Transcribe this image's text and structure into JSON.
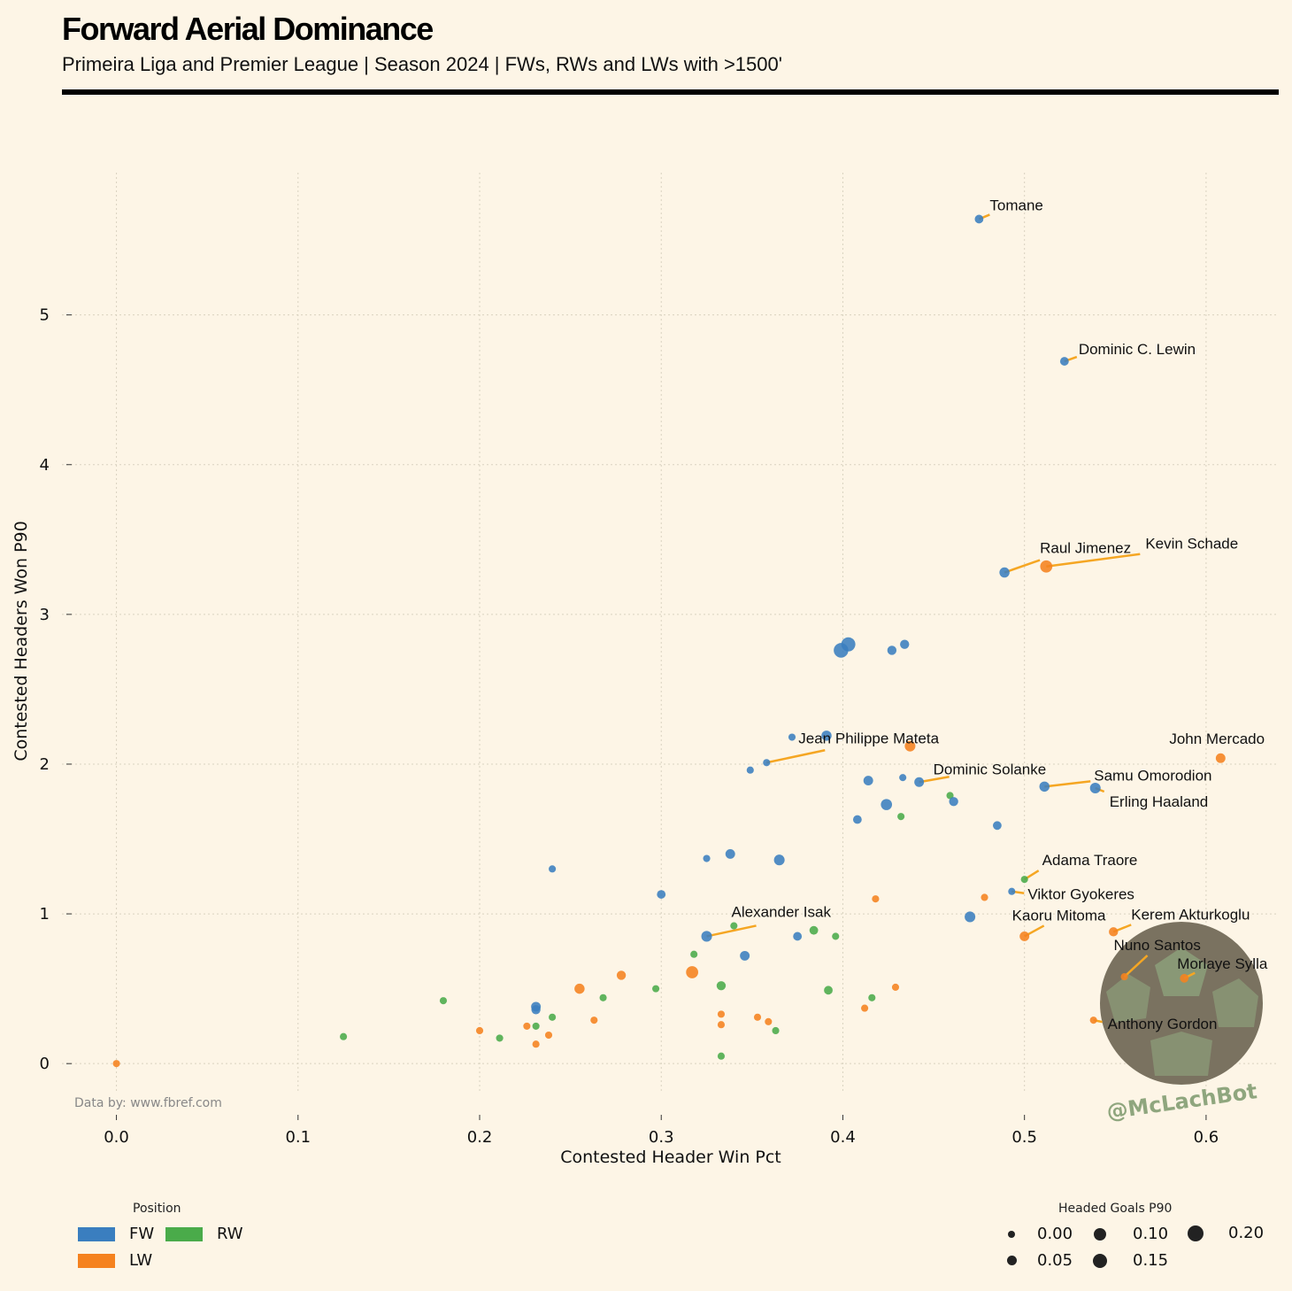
{
  "header": {
    "title": "Forward Aerial Dominance",
    "subtitle": "Primeira Liga and Premier League | Season 2024 | FWs, RWs and LWs with >1500'"
  },
  "credit": "Data by: www.fbref.com",
  "watermark": "@McLachBot",
  "legend": {
    "position_title": "Position",
    "positions": [
      {
        "label": "FW",
        "color": "#3a7ebf"
      },
      {
        "label": "RW",
        "color": "#4aab4a"
      },
      {
        "label": "LW",
        "color": "#f5821f"
      }
    ],
    "size_title": "Headed Goals P90",
    "sizes": [
      {
        "label": "0.00",
        "value": 0.0
      },
      {
        "label": "0.05",
        "value": 0.05
      },
      {
        "label": "0.10",
        "value": 0.1
      },
      {
        "label": "0.15",
        "value": 0.15
      },
      {
        "label": "0.20",
        "value": 0.2
      }
    ]
  },
  "chart_data": {
    "type": "scatter",
    "xlabel": "Contested Header Win Pct",
    "ylabel": "Contested Headers Won P90",
    "xlim": [
      -0.03,
      0.64
    ],
    "ylim": [
      -0.2,
      5.95
    ],
    "xticks": [
      "0.0",
      "0.1",
      "0.2",
      "0.3",
      "0.4",
      "0.5",
      "0.6"
    ],
    "yticks": [
      "0",
      "1",
      "2",
      "3",
      "4",
      "5"
    ],
    "grid": true,
    "size_variable": "Headed Goals P90",
    "color_variable": "Position",
    "points": [
      {
        "x": 0.475,
        "y": 5.64,
        "pos": "FW",
        "size": 0.05,
        "label": "Tomane"
      },
      {
        "x": 0.522,
        "y": 4.69,
        "pos": "FW",
        "size": 0.05,
        "label": "Dominic C. Lewin"
      },
      {
        "x": 0.489,
        "y": 3.28,
        "pos": "FW",
        "size": 0.08,
        "label": "Raul Jimenez"
      },
      {
        "x": 0.512,
        "y": 3.32,
        "pos": "LW",
        "size": 0.12,
        "label": "Kevin Schade"
      },
      {
        "x": 0.403,
        "y": 2.8,
        "pos": "FW",
        "size": 0.16
      },
      {
        "x": 0.399,
        "y": 2.76,
        "pos": "FW",
        "size": 0.17
      },
      {
        "x": 0.434,
        "y": 2.8,
        "pos": "FW",
        "size": 0.06
      },
      {
        "x": 0.427,
        "y": 2.76,
        "pos": "FW",
        "size": 0.06
      },
      {
        "x": 0.391,
        "y": 2.19,
        "pos": "FW",
        "size": 0.08
      },
      {
        "x": 0.372,
        "y": 2.18,
        "pos": "FW",
        "size": 0.02
      },
      {
        "x": 0.437,
        "y": 2.12,
        "pos": "LW",
        "size": 0.09
      },
      {
        "x": 0.358,
        "y": 2.01,
        "pos": "FW",
        "size": 0.02,
        "label": "Jean Philippe Mateta"
      },
      {
        "x": 0.349,
        "y": 1.96,
        "pos": "FW",
        "size": 0.02
      },
      {
        "x": 0.414,
        "y": 1.89,
        "pos": "FW",
        "size": 0.07
      },
      {
        "x": 0.433,
        "y": 1.91,
        "pos": "FW",
        "size": 0.02
      },
      {
        "x": 0.442,
        "y": 1.88,
        "pos": "FW",
        "size": 0.07,
        "label": "Dominic Solanke"
      },
      {
        "x": 0.459,
        "y": 1.79,
        "pos": "RW",
        "size": 0.02
      },
      {
        "x": 0.461,
        "y": 1.75,
        "pos": "FW",
        "size": 0.06
      },
      {
        "x": 0.424,
        "y": 1.73,
        "pos": "FW",
        "size": 0.1
      },
      {
        "x": 0.408,
        "y": 1.63,
        "pos": "FW",
        "size": 0.05
      },
      {
        "x": 0.432,
        "y": 1.65,
        "pos": "RW",
        "size": 0.02
      },
      {
        "x": 0.485,
        "y": 1.59,
        "pos": "FW",
        "size": 0.05
      },
      {
        "x": 0.511,
        "y": 1.85,
        "pos": "FW",
        "size": 0.08,
        "label": "Samu Omorodion"
      },
      {
        "x": 0.539,
        "y": 1.84,
        "pos": "FW",
        "size": 0.09,
        "label": "Erling Haaland"
      },
      {
        "x": 0.608,
        "y": 2.04,
        "pos": "LW",
        "size": 0.07,
        "label": "John Mercado"
      },
      {
        "x": 0.338,
        "y": 1.4,
        "pos": "FW",
        "size": 0.07
      },
      {
        "x": 0.325,
        "y": 1.37,
        "pos": "FW",
        "size": 0.02
      },
      {
        "x": 0.365,
        "y": 1.36,
        "pos": "FW",
        "size": 0.09
      },
      {
        "x": 0.24,
        "y": 1.3,
        "pos": "FW",
        "size": 0.02
      },
      {
        "x": 0.3,
        "y": 1.13,
        "pos": "FW",
        "size": 0.05
      },
      {
        "x": 0.5,
        "y": 1.23,
        "pos": "RW",
        "size": 0.02,
        "label": "Adama Traore"
      },
      {
        "x": 0.493,
        "y": 1.15,
        "pos": "FW",
        "size": 0.02,
        "label": "Viktor Gyokeres"
      },
      {
        "x": 0.478,
        "y": 1.11,
        "pos": "LW",
        "size": 0.02
      },
      {
        "x": 0.418,
        "y": 1.1,
        "pos": "LW",
        "size": 0.02
      },
      {
        "x": 0.47,
        "y": 0.98,
        "pos": "FW",
        "size": 0.09
      },
      {
        "x": 0.5,
        "y": 0.85,
        "pos": "LW",
        "size": 0.07,
        "label": "Kaoru Mitoma"
      },
      {
        "x": 0.549,
        "y": 0.88,
        "pos": "LW",
        "size": 0.06,
        "label": "Kerem Akturkoglu"
      },
      {
        "x": 0.325,
        "y": 0.85,
        "pos": "FW",
        "size": 0.09,
        "label": "Alexander Isak"
      },
      {
        "x": 0.34,
        "y": 0.92,
        "pos": "RW",
        "size": 0.02
      },
      {
        "x": 0.384,
        "y": 0.89,
        "pos": "RW",
        "size": 0.05
      },
      {
        "x": 0.375,
        "y": 0.85,
        "pos": "FW",
        "size": 0.05
      },
      {
        "x": 0.396,
        "y": 0.85,
        "pos": "RW",
        "size": 0.02
      },
      {
        "x": 0.346,
        "y": 0.72,
        "pos": "FW",
        "size": 0.07
      },
      {
        "x": 0.318,
        "y": 0.73,
        "pos": "RW",
        "size": 0.02
      },
      {
        "x": 0.317,
        "y": 0.61,
        "pos": "LW",
        "size": 0.12
      },
      {
        "x": 0.278,
        "y": 0.59,
        "pos": "LW",
        "size": 0.06
      },
      {
        "x": 0.333,
        "y": 0.52,
        "pos": "RW",
        "size": 0.06
      },
      {
        "x": 0.297,
        "y": 0.5,
        "pos": "RW",
        "size": 0.02
      },
      {
        "x": 0.255,
        "y": 0.5,
        "pos": "LW",
        "size": 0.08
      },
      {
        "x": 0.429,
        "y": 0.51,
        "pos": "LW",
        "size": 0.02
      },
      {
        "x": 0.392,
        "y": 0.49,
        "pos": "RW",
        "size": 0.05
      },
      {
        "x": 0.268,
        "y": 0.44,
        "pos": "RW",
        "size": 0.02
      },
      {
        "x": 0.18,
        "y": 0.42,
        "pos": "RW",
        "size": 0.02
      },
      {
        "x": 0.416,
        "y": 0.44,
        "pos": "RW",
        "size": 0.02
      },
      {
        "x": 0.412,
        "y": 0.37,
        "pos": "LW",
        "size": 0.02
      },
      {
        "x": 0.231,
        "y": 0.38,
        "pos": "FW",
        "size": 0.07
      },
      {
        "x": 0.231,
        "y": 0.36,
        "pos": "FW",
        "size": 0.06
      },
      {
        "x": 0.333,
        "y": 0.33,
        "pos": "LW",
        "size": 0.02
      },
      {
        "x": 0.353,
        "y": 0.31,
        "pos": "LW",
        "size": 0.02
      },
      {
        "x": 0.24,
        "y": 0.31,
        "pos": "RW",
        "size": 0.02
      },
      {
        "x": 0.263,
        "y": 0.29,
        "pos": "LW",
        "size": 0.02
      },
      {
        "x": 0.359,
        "y": 0.28,
        "pos": "LW",
        "size": 0.02
      },
      {
        "x": 0.333,
        "y": 0.26,
        "pos": "LW",
        "size": 0.02
      },
      {
        "x": 0.231,
        "y": 0.25,
        "pos": "RW",
        "size": 0.02
      },
      {
        "x": 0.226,
        "y": 0.25,
        "pos": "LW",
        "size": 0.02
      },
      {
        "x": 0.2,
        "y": 0.22,
        "pos": "LW",
        "size": 0.02
      },
      {
        "x": 0.363,
        "y": 0.22,
        "pos": "RW",
        "size": 0.02
      },
      {
        "x": 0.238,
        "y": 0.19,
        "pos": "LW",
        "size": 0.02
      },
      {
        "x": 0.125,
        "y": 0.18,
        "pos": "RW",
        "size": 0.02
      },
      {
        "x": 0.211,
        "y": 0.17,
        "pos": "RW",
        "size": 0.02
      },
      {
        "x": 0.231,
        "y": 0.13,
        "pos": "LW",
        "size": 0.02
      },
      {
        "x": 0.333,
        "y": 0.05,
        "pos": "RW",
        "size": 0.02
      },
      {
        "x": 0.0,
        "y": 0.0,
        "pos": "LW",
        "size": 0.02
      },
      {
        "x": 0.555,
        "y": 0.58,
        "pos": "LW",
        "size": 0.02,
        "label": "Nuno Santos"
      },
      {
        "x": 0.588,
        "y": 0.57,
        "pos": "LW",
        "size": 0.05,
        "label": "Morlaye Sylla"
      },
      {
        "x": 0.538,
        "y": 0.29,
        "pos": "LW",
        "size": 0.02,
        "label": "Anthony Gordon"
      }
    ]
  }
}
